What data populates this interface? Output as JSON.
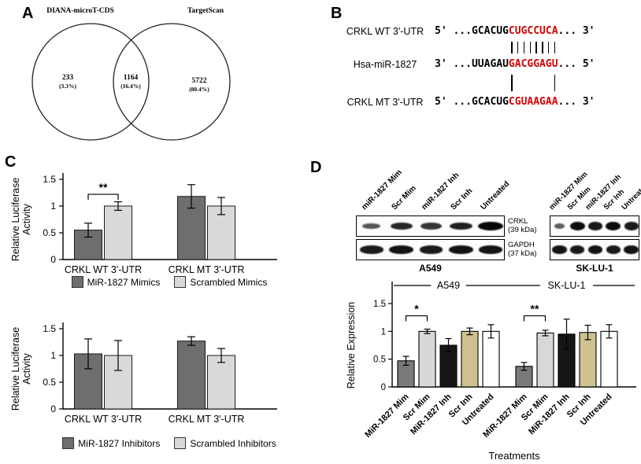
{
  "panels": {
    "a": {
      "label": "A",
      "venn": {
        "left_title": "DIANA-microT-CDS",
        "right_title": "TargetScan",
        "left_count": "233",
        "left_pct": "(3.3%)",
        "overlap_count": "1164",
        "overlap_pct": "(16.4%)",
        "right_count": "5722",
        "right_pct": "(80.4%)"
      }
    },
    "b": {
      "label": "B",
      "rows": [
        {
          "name": "CRKL WT 3'-UTR",
          "prefix": "5' ...GCACUG",
          "red": "CUGCCUCA",
          "suffix": "... 3'"
        },
        {
          "name": "Hsa-miR-1827",
          "prefix": "3' ...UUAGAU",
          "red": "GACGGAGU",
          "suffix": "... 5'"
        },
        {
          "name": "CRKL MT 3'-UTR",
          "prefix": "5' ...GCACUG",
          "red": "CGUAAGAA",
          "suffix": "... 3'"
        }
      ],
      "pairing": [
        {
          "indices": [
            0,
            1,
            2,
            3,
            4,
            5,
            6,
            7
          ]
        },
        {
          "indices": [
            0,
            7
          ]
        }
      ]
    },
    "c": {
      "label": "C"
    },
    "d": {
      "label": "D",
      "blot": {
        "lane_labels": [
          "miR-1827 Mim",
          "Scr Mim",
          "miR-1827 Inh",
          "Scr Inh",
          "Untreated"
        ],
        "cell_lines": [
          "A549",
          "SK-LU-1"
        ],
        "bands": [
          {
            "name": "CRKL",
            "kda": "(39 kDa)",
            "intensities": [
              [
                0.4,
                0.75,
                0.65,
                0.8,
                1.0
              ],
              [
                0.35,
                0.95,
                0.85,
                0.95,
                0.85
              ]
            ]
          },
          {
            "name": "GAPDH",
            "kda": "(37 kDa)",
            "intensities": [
              [
                0.85,
                0.9,
                0.85,
                0.9,
                0.9
              ],
              [
                0.9,
                0.85,
                0.9,
                0.85,
                0.9
              ]
            ]
          }
        ]
      }
    }
  },
  "chart_data": [
    {
      "id": "luciferase-mimics",
      "type": "bar",
      "title": "",
      "xlabel": "",
      "ylabel": "Relative Luciferase Activity",
      "ylim": [
        0,
        1.5
      ],
      "yticks": [
        0,
        0.5,
        1,
        1.5
      ],
      "categories": [
        "CRKL WT 3'-UTR",
        "CRKL MT 3'-UTR"
      ],
      "series": [
        {
          "name": "MiR-1827 Mimics",
          "color": "#6e6e6e",
          "values": [
            0.55,
            1.18
          ],
          "errors": [
            0.13,
            0.22
          ]
        },
        {
          "name": "Scrambled Mimics",
          "color": "#d9d9d9",
          "values": [
            1.0,
            1.0
          ],
          "errors": [
            0.08,
            0.16
          ]
        }
      ],
      "significance": [
        {
          "category": 0,
          "label": "**"
        }
      ]
    },
    {
      "id": "luciferase-inhibitors",
      "type": "bar",
      "title": "",
      "xlabel": "",
      "ylabel": "Relative Luciferase Activity",
      "ylim": [
        0,
        1.5
      ],
      "yticks": [
        0,
        0.5,
        1,
        1.5
      ],
      "categories": [
        "CRKL WT 3'-UTR",
        "CRKL MT 3'-UTR"
      ],
      "series": [
        {
          "name": "MiR-1827 Inhibitors",
          "color": "#6e6e6e",
          "values": [
            1.03,
            1.27
          ],
          "errors": [
            0.28,
            0.08
          ]
        },
        {
          "name": "Scrambled Inhibitors",
          "color": "#d9d9d9",
          "values": [
            1.0,
            1.0
          ],
          "errors": [
            0.28,
            0.13
          ]
        }
      ],
      "significance": []
    },
    {
      "id": "crkl-expression",
      "type": "bar",
      "title": "",
      "xlabel": "Treatments",
      "ylabel": "Relative Expression",
      "ylim": [
        0,
        1.5
      ],
      "yticks": [
        0,
        0.5,
        1,
        1.5
      ],
      "groups": [
        "A549",
        "SK-LU-1"
      ],
      "categories": [
        "MiR-1827 Mim",
        "Scr Mim",
        "MiR-1827 Inh",
        "Scr Inh",
        "Untreated"
      ],
      "colors": [
        "#7a7a7a",
        "#d8d8d8",
        "#161616",
        "#cfc08f",
        "#ffffff"
      ],
      "series": [
        {
          "group": "A549",
          "values": [
            0.47,
            1.0,
            0.75,
            1.0,
            1.0
          ],
          "errors": [
            0.08,
            0.04,
            0.12,
            0.06,
            0.12
          ]
        },
        {
          "group": "SK-LU-1",
          "values": [
            0.37,
            0.97,
            0.95,
            0.98,
            1.0
          ],
          "errors": [
            0.07,
            0.05,
            0.27,
            0.13,
            0.12
          ]
        }
      ],
      "significance": [
        {
          "group": 0,
          "bars": [
            0,
            1
          ],
          "label": "*"
        },
        {
          "group": 1,
          "bars": [
            0,
            1
          ],
          "label": "**"
        }
      ]
    }
  ]
}
